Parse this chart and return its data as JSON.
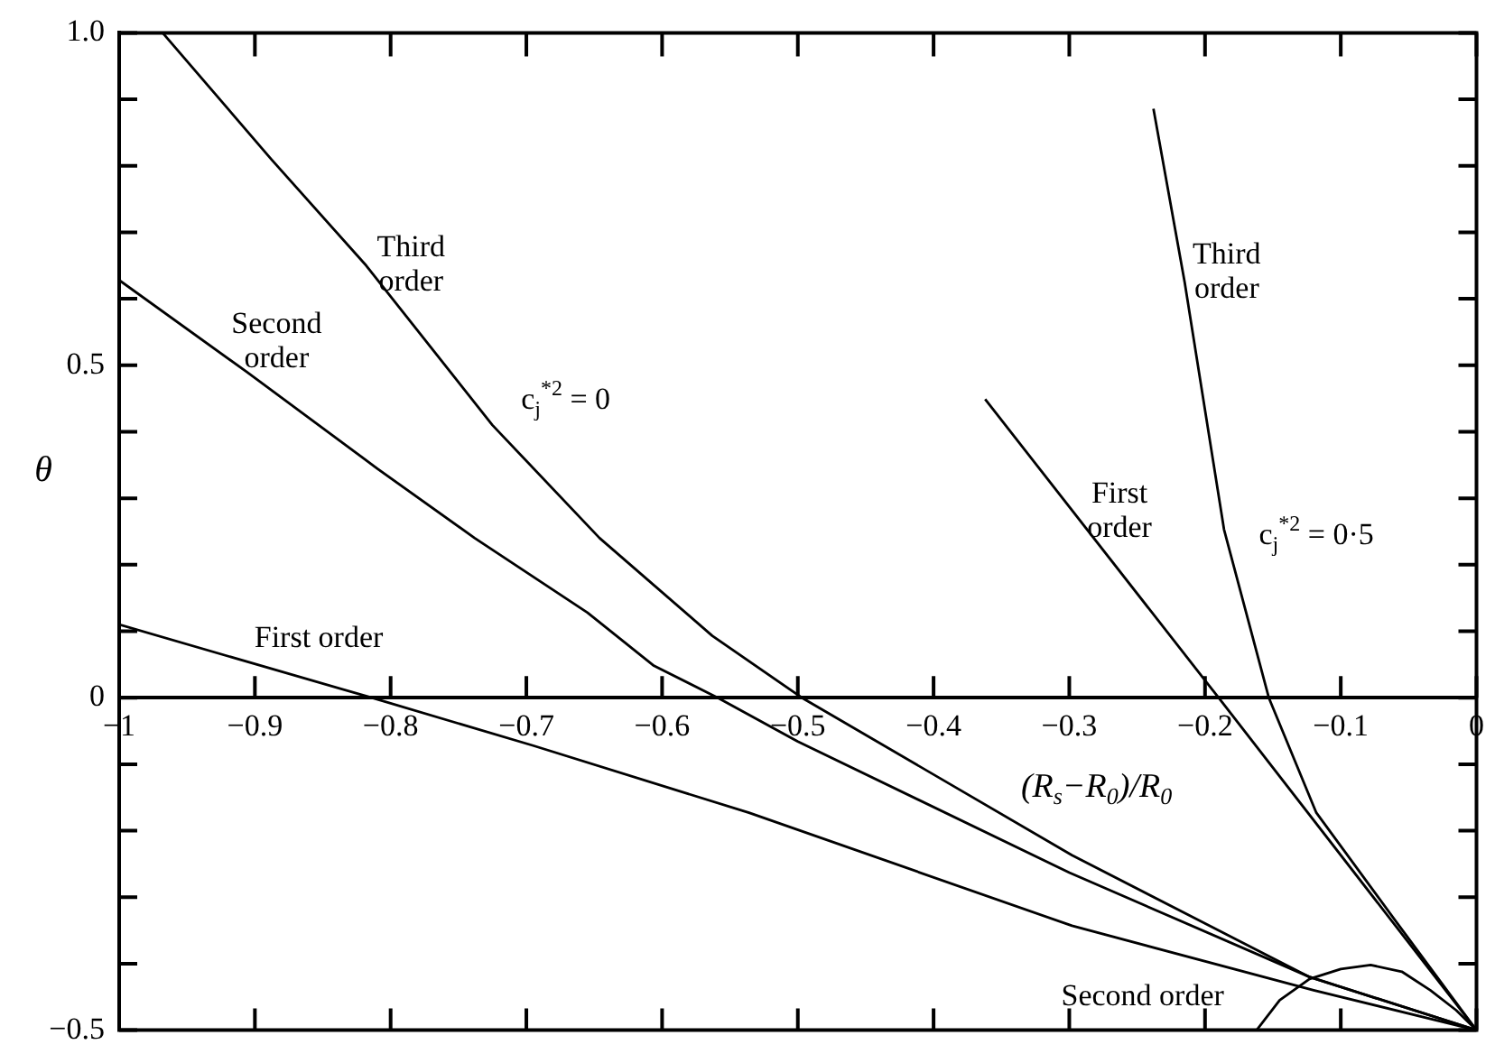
{
  "chart_data": {
    "type": "line",
    "xlabel": "(R$_{s}$−R$_{0}$)/R$_{0}$",
    "ylabel": "θ",
    "xlim": [
      -1,
      0
    ],
    "ylim": [
      -0.5,
      1.0
    ],
    "xticks": [
      {
        "value": -1,
        "label": "−1"
      },
      {
        "value": -0.9,
        "label": "−0.9"
      },
      {
        "value": -0.8,
        "label": "−0.8"
      },
      {
        "value": -0.7,
        "label": "−0.7"
      },
      {
        "value": -0.6,
        "label": "−0.6"
      },
      {
        "value": -0.5,
        "label": "−0.5"
      },
      {
        "value": -0.4,
        "label": "−0.4"
      },
      {
        "value": -0.3,
        "label": "−0.3"
      },
      {
        "value": -0.2,
        "label": "−0.2"
      },
      {
        "value": -0.1,
        "label": "−0.1"
      },
      0
    ],
    "yticks": [
      {
        "value": -0.5,
        "label": "−0.5"
      },
      {
        "value": -0.4,
        "label": null
      },
      {
        "value": -0.3,
        "label": null
      },
      {
        "value": -0.2,
        "label": null
      },
      {
        "value": -0.1,
        "label": null
      },
      0,
      {
        "value": 0.1,
        "label": null
      },
      {
        "value": 0.2,
        "label": null
      },
      {
        "value": 0.3,
        "label": null
      },
      {
        "value": 0.4,
        "label": null
      },
      0.5,
      {
        "value": 0.6,
        "label": null
      },
      {
        "value": 0.7,
        "label": null
      },
      {
        "value": 0.8,
        "label": null
      },
      {
        "value": 0.9,
        "label": null
      },
      {
        "value": 1.0,
        "label": "1.0"
      }
    ],
    "grid": false,
    "legend": false,
    "marker": "none",
    "line_style": "solid",
    "series": [
      {
        "color": "#000000",
        "x": [
          -1,
          -0.814,
          -0.695,
          -0.536,
          -0.298,
          -0.12,
          0
        ],
        "values": [
          0.11,
          0,
          -0.072,
          -0.173,
          -0.343,
          -0.44,
          -0.5
        ]
      },
      {
        "color": "#000000",
        "x": [
          -1,
          -0.906,
          -0.81,
          -0.738,
          -0.655,
          -0.606,
          -0.559,
          -0.5,
          -0.3,
          -0.123,
          0
        ],
        "values": [
          0.628,
          0.49,
          0.345,
          0.24,
          0.128,
          0.048,
          0,
          -0.066,
          -0.263,
          -0.42,
          -0.5
        ]
      },
      {
        "color": "#000000",
        "x": [
          -0.968,
          -0.888,
          -0.818,
          -0.725,
          -0.646,
          -0.563,
          -0.497,
          -0.298,
          -0.123,
          0
        ],
        "values": [
          1.0,
          0.81,
          0.65,
          0.41,
          0.24,
          0.093,
          0,
          -0.237,
          -0.42,
          -0.5
        ]
      },
      {
        "color": "#000000",
        "x": [
          -0.362,
          -0.19,
          0
        ],
        "values": [
          0.449,
          0,
          -0.5
        ]
      },
      {
        "color": "#000000",
        "x": [
          -0.238,
          -0.215,
          -0.186,
          -0.153,
          -0.118,
          -0.057,
          0
        ],
        "values": [
          0.886,
          0.625,
          0.253,
          0,
          -0.173,
          -0.343,
          -0.5
        ]
      },
      {
        "color": "#000000",
        "x": [
          -0.162,
          -0.145,
          -0.123,
          -0.1,
          -0.078,
          -0.055,
          -0.034,
          -0.015,
          0
        ],
        "values": [
          -0.5,
          -0.455,
          -0.423,
          -0.408,
          -0.402,
          -0.412,
          -0.44,
          -0.47,
          -0.5
        ]
      }
    ],
    "annotations": [
      "Third\norder",
      "Second\norder",
      "c$_{j}$$^{*2}$ = 0",
      "First order",
      "Third\norder",
      "First\norder",
      "c$_{j}$$^{*2}$ = 0·5",
      "Second order"
    ]
  }
}
